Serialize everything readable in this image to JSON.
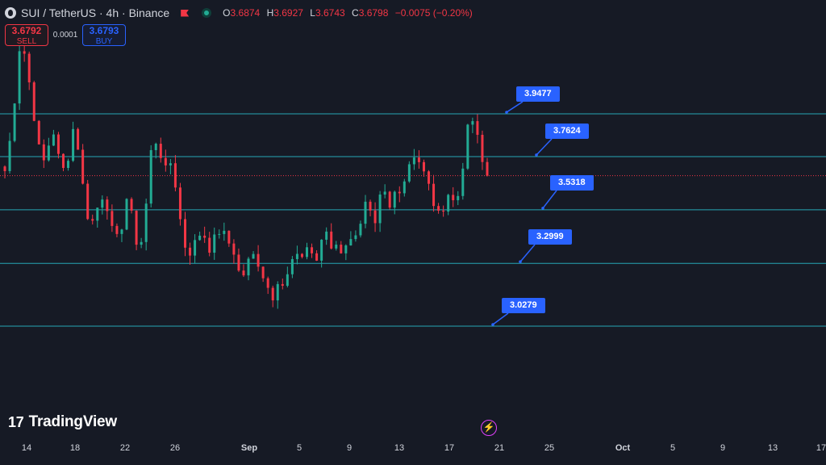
{
  "header": {
    "symbol": "SUI / TetherUS · 4h · Binance",
    "ohlc": [
      {
        "k": "O",
        "v": "3.6874"
      },
      {
        "k": "H",
        "v": "3.6927"
      },
      {
        "k": "L",
        "v": "3.6743"
      },
      {
        "k": "C",
        "v": "3.6798"
      }
    ],
    "change": "−0.0075 (−0.20%)"
  },
  "trade": {
    "sell_price": "3.6792",
    "sell_label": "SELL",
    "spread": "0.0001",
    "buy_price": "3.6793",
    "buy_label": "BUY"
  },
  "brand": "TradingView",
  "colors": {
    "background": "#161a25",
    "up": "#22ab94",
    "down": "#f23645",
    "level_line": "#26a6b5",
    "label_bg": "#2962ff"
  },
  "levels": [
    {
      "price": 3.9477,
      "label": "3.9477"
    },
    {
      "price": 3.7624,
      "label": "3.7624"
    },
    {
      "price": 3.5318,
      "label": "3.5318"
    },
    {
      "price": 3.2999,
      "label": "3.2999"
    },
    {
      "price": 3.0279,
      "label": "3.0279"
    }
  ],
  "last_price": 3.6798,
  "x_axis": [
    {
      "label": "14",
      "bold": false
    },
    {
      "label": "18",
      "bold": false
    },
    {
      "label": "22",
      "bold": false
    },
    {
      "label": "26",
      "bold": false
    },
    {
      "label": "Sep",
      "bold": true
    },
    {
      "label": "5",
      "bold": false
    },
    {
      "label": "9",
      "bold": false
    },
    {
      "label": "13",
      "bold": false
    },
    {
      "label": "17",
      "bold": false
    },
    {
      "label": "21",
      "bold": false
    },
    {
      "label": "25",
      "bold": false
    },
    {
      "label": "Oct",
      "bold": true
    },
    {
      "label": "5",
      "bold": false
    },
    {
      "label": "9",
      "bold": false
    },
    {
      "label": "13",
      "bold": false
    },
    {
      "label": "17",
      "bold": false
    }
  ],
  "chart_data": {
    "type": "candlestick",
    "interval": "4h",
    "grid": false,
    "close_path": [
      3.7,
      3.84,
      4.05,
      4.3,
      4.16,
      4.02,
      3.84,
      3.72,
      3.8,
      3.88,
      3.76,
      3.7,
      3.78,
      3.92,
      3.74,
      3.55,
      3.46,
      3.52,
      3.6,
      3.56,
      3.44,
      3.4,
      3.48,
      3.62,
      3.44,
      3.36,
      3.44,
      3.76,
      3.84,
      3.78,
      3.7,
      3.74,
      3.62,
      3.44,
      3.34,
      3.36,
      3.42,
      3.44,
      3.36,
      3.4,
      3.44,
      3.42,
      3.38,
      3.34,
      3.22,
      3.28,
      3.34,
      3.32,
      3.26,
      3.2,
      3.16,
      3.24,
      3.2,
      3.26,
      3.34,
      3.3,
      3.38,
      3.36,
      3.3,
      3.38,
      3.44,
      3.36,
      3.4,
      3.34,
      3.38,
      3.46,
      3.4,
      3.56,
      3.52,
      3.44,
      3.58,
      3.6,
      3.52,
      3.64,
      3.62,
      3.7,
      3.78,
      3.76,
      3.7,
      3.64,
      3.56,
      3.5,
      3.56,
      3.62,
      3.54,
      3.64,
      3.84,
      3.94,
      3.86,
      3.74,
      3.68
    ]
  }
}
